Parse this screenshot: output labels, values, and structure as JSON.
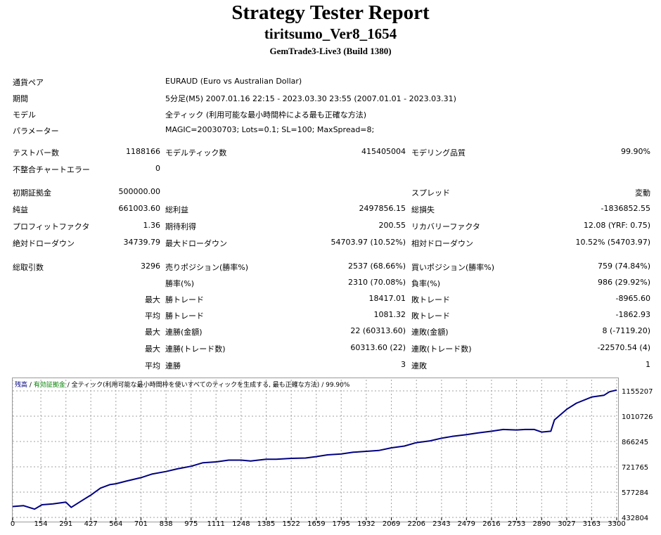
{
  "header": {
    "title": "Strategy Tester Report",
    "ea_name": "tiritsumo_Ver8_1654",
    "server": "GemTrade3-Live3 (Build 1380)"
  },
  "info": {
    "symbol_label": "通貨ペア",
    "symbol_value": "EURAUD (Euro vs Australian Dollar)",
    "period_label": "期間",
    "period_value": "5分足(M5) 2007.01.16 22:15 - 2023.03.30 23:55 (2007.01.01 - 2023.03.31)",
    "model_label": "モデル",
    "model_value": "全ティック (利用可能な最小時間枠による最も正確な方法)",
    "params_label": "パラメーター",
    "params_value": "MAGIC=20030703; Lots=0.1; SL=100; MaxSpread=8;"
  },
  "stats": {
    "bars_label": "テストバー数",
    "bars_value": "1188166",
    "ticks_label": "モデルティック数",
    "ticks_value": "415405004",
    "quality_label": "モデリング品質",
    "quality_value": "99.90%",
    "mismatch_label": "不整合チャートエラー",
    "mismatch_value": "0",
    "deposit_label": "初期証拠金",
    "deposit_value": "500000.00",
    "spread_label": "スプレッド",
    "spread_value": "変動",
    "net_label": "純益",
    "net_value": "661003.60",
    "gross_profit_label": "総利益",
    "gross_profit_value": "2497856.15",
    "gross_loss_label": "総損失",
    "gross_loss_value": "-1836852.55",
    "pf_label": "プロフィットファクタ",
    "pf_value": "1.36",
    "expected_label": "期待利得",
    "expected_value": "200.55",
    "recovery_label": "リカバリーファクタ",
    "recovery_value": "12.08 (YRF: 0.75)",
    "abs_dd_label": "絶対ドローダウン",
    "abs_dd_value": "34739.79",
    "max_dd_label": "最大ドローダウン",
    "max_dd_value": "54703.97 (10.52%)",
    "rel_dd_label": "相対ドローダウン",
    "rel_dd_value": "10.52% (54703.97)",
    "trades_label": "総取引数",
    "trades_value": "3296",
    "short_label": "売りポジション(勝率%)",
    "short_value": "2537 (68.66%)",
    "long_label": "買いポジション(勝率%)",
    "long_value": "759 (74.84%)",
    "win_rate_label": "勝率(%)",
    "win_rate_value": "2310 (70.08%)",
    "loss_rate_label": "負率(%)",
    "loss_rate_value": "986 (29.92%)",
    "pre_max": "最大",
    "pre_avg": "平均",
    "lg_win_label": "勝トレード",
    "lg_win_value": "18417.01",
    "lg_loss_label": "敗トレード",
    "lg_loss_value": "-8965.60",
    "av_win_label": "勝トレード",
    "av_win_value": "1081.32",
    "av_loss_label": "敗トレード",
    "av_loss_value": "-1862.93",
    "mx_cw_label": "連勝(金額)",
    "mx_cw_value": "22 (60313.60)",
    "mx_cl_label": "連敗(金額)",
    "mx_cl_value": "8 (-7119.20)",
    "mx_cwp_label": "連勝(トレード数)",
    "mx_cwp_value": "60313.60 (22)",
    "mx_clp_label": "連敗(トレード数)",
    "mx_clp_value": "-22570.54 (4)",
    "av_cw_label": "連勝",
    "av_cw_value": "3",
    "av_cl_label": "連敗",
    "av_cl_value": "1"
  },
  "chart_legend": {
    "balance": "残高",
    "equity": "有効証拠金",
    "model_text": "全ティック(利用可能な最小時間枠を使いすべてのティックを生成する, 最も正確な方法)",
    "quality": "99.90%",
    "sep": "/"
  },
  "colors": {
    "balance": "#000080",
    "equity": "#008000",
    "grid": "#a0a0a0"
  },
  "chart_data": {
    "type": "line",
    "title": "",
    "xlabel": "",
    "ylabel": "",
    "x_ticks": [
      0,
      154,
      291,
      427,
      564,
      701,
      838,
      975,
      1111,
      1248,
      1385,
      1522,
      1659,
      1795,
      1932,
      2069,
      2206,
      2343,
      2479,
      2616,
      2753,
      2890,
      3027,
      3163,
      3300
    ],
    "y_ticks": [
      432804,
      577284,
      721765,
      866245,
      1010726,
      1155207
    ],
    "xlim": [
      0,
      3300
    ],
    "ylim": [
      432804,
      1155207
    ],
    "grid": true,
    "series": [
      {
        "name": "残高",
        "x": [
          0,
          60,
          120,
          160,
          220,
          291,
          320,
          380,
          427,
          480,
          530,
          564,
          620,
          701,
          760,
          838,
          900,
          975,
          1040,
          1111,
          1180,
          1248,
          1300,
          1385,
          1440,
          1522,
          1600,
          1659,
          1720,
          1795,
          1860,
          1932,
          2000,
          2069,
          2140,
          2206,
          2280,
          2343,
          2400,
          2479,
          2540,
          2616,
          2680,
          2753,
          2800,
          2850,
          2890,
          2940,
          2960,
          3027,
          3080,
          3163,
          3230,
          3260,
          3300
        ],
        "y": [
          495000,
          500000,
          480000,
          505000,
          510000,
          520000,
          490000,
          530000,
          560000,
          600000,
          620000,
          625000,
          640000,
          660000,
          680000,
          695000,
          710000,
          725000,
          745000,
          750000,
          760000,
          760000,
          755000,
          765000,
          765000,
          770000,
          772000,
          780000,
          790000,
          795000,
          805000,
          810000,
          815000,
          830000,
          840000,
          860000,
          870000,
          885000,
          895000,
          905000,
          915000,
          925000,
          935000,
          932000,
          935000,
          935000,
          920000,
          925000,
          990000,
          1050000,
          1085000,
          1120000,
          1130000,
          1150000,
          1160000
        ]
      }
    ]
  }
}
